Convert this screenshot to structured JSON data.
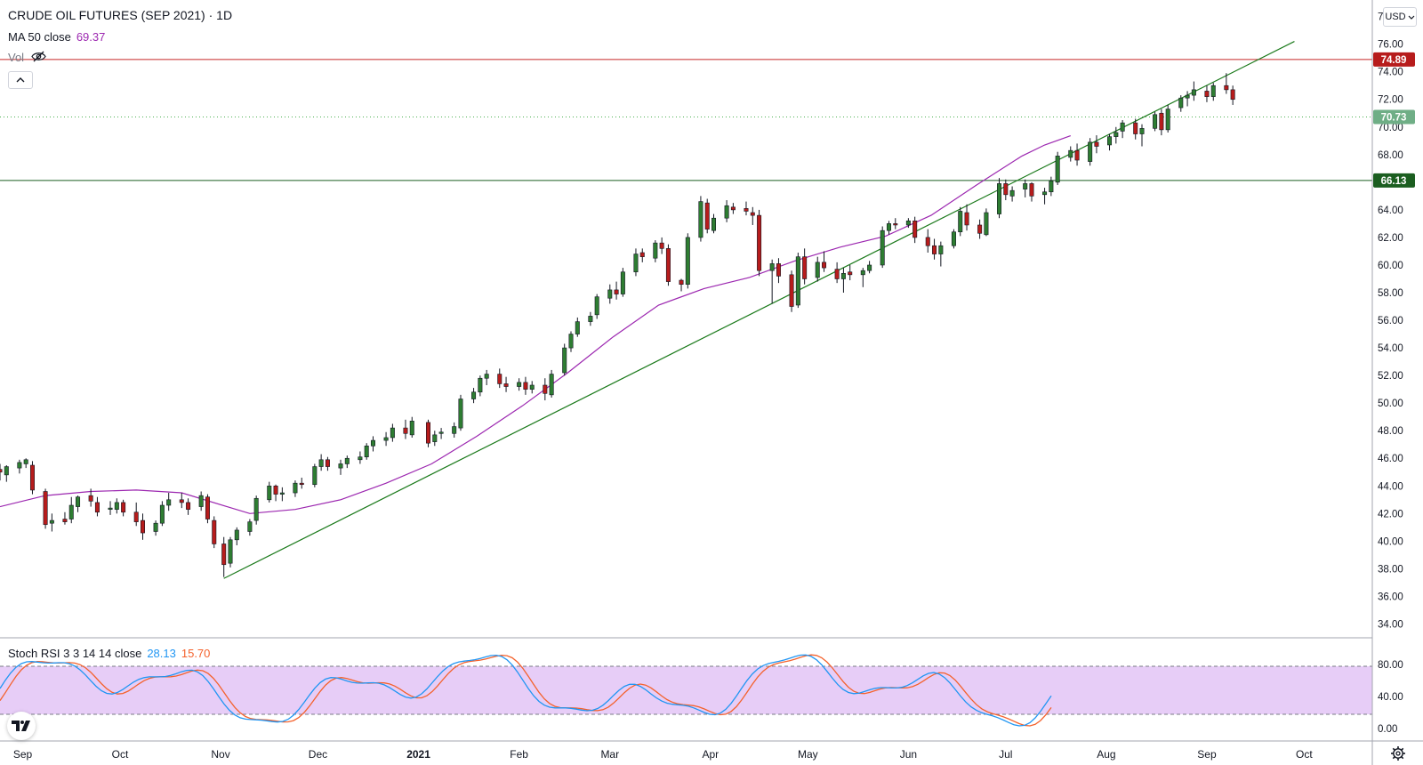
{
  "header": {
    "title": "CRUDE OIL FUTURES (SEP 2021) · 1D",
    "ma_label": "MA 50 close",
    "ma_value": "69.37",
    "vol_label": "Vol",
    "stoch_label": "Stoch RSI 3 3 14 14 close",
    "stoch_k_value": "28.13",
    "stoch_d_value": "15.70"
  },
  "currency_label": "USD",
  "colors": {
    "up": "#26a69a",
    "candle_up": "#2e7d32",
    "candle_down": "#b71c1c",
    "ma": "#9c27b0",
    "trendline": "#1b7a1b",
    "resistance": "#c62828",
    "support": "#1b5e20",
    "last_price": "#4caf50",
    "stoch_k": "#2196f3",
    "stoch_d": "#ff5722",
    "stoch_band": "#e1bee7"
  },
  "chart_data": {
    "type": "candlestick",
    "y_min": 33.0,
    "y_max": 79.2,
    "y_ticks": [
      34,
      36,
      38,
      40,
      42,
      44,
      46,
      48,
      50,
      52,
      54,
      56,
      58,
      60,
      62,
      64,
      66,
      68,
      70,
      72,
      74,
      76,
      78
    ],
    "x_ticks": [
      "Sep",
      "Oct",
      "Nov",
      "Dec",
      "2021",
      "Feb",
      "Mar",
      "Apr",
      "May",
      "Jun",
      "Jul",
      "Aug",
      "Sep",
      "Oct"
    ],
    "x_tick_dates": [
      "2020-09-01",
      "2020-10-01",
      "2020-11-01",
      "2020-12-01",
      "2021-01-01",
      "2021-02-01",
      "2021-03-01",
      "2021-04-01",
      "2021-05-01",
      "2021-06-01",
      "2021-07-01",
      "2021-08-01",
      "2021-09-01",
      "2021-10-01"
    ],
    "x_range": [
      "2020-08-25",
      "2021-10-22"
    ],
    "price_lines": [
      {
        "name": "resistance",
        "value": 74.89,
        "label": "74.89",
        "style": "solid"
      },
      {
        "name": "last-price",
        "value": 70.73,
        "label": "70.73",
        "style": "dotted"
      },
      {
        "name": "support",
        "value": 66.13,
        "label": "66.13",
        "style": "solid"
      }
    ],
    "trendline": {
      "start": [
        "2020-11-02",
        37.3
      ],
      "end": [
        "2021-09-28",
        76.2
      ]
    },
    "ma50": [
      [
        "2020-08-25",
        42.5
      ],
      [
        "2020-09-08",
        43.3
      ],
      [
        "2020-09-22",
        43.6
      ],
      [
        "2020-10-06",
        43.7
      ],
      [
        "2020-10-20",
        43.5
      ],
      [
        "2020-11-03",
        42.5
      ],
      [
        "2020-11-10",
        42.0
      ],
      [
        "2020-11-24",
        42.3
      ],
      [
        "2020-12-08",
        43.0
      ],
      [
        "2020-12-22",
        44.2
      ],
      [
        "2021-01-05",
        45.6
      ],
      [
        "2021-01-19",
        47.6
      ],
      [
        "2021-02-02",
        49.8
      ],
      [
        "2021-02-16",
        52.2
      ],
      [
        "2021-03-02",
        54.8
      ],
      [
        "2021-03-16",
        57.1
      ],
      [
        "2021-03-30",
        58.3
      ],
      [
        "2021-04-13",
        59.1
      ],
      [
        "2021-04-27",
        60.3
      ],
      [
        "2021-05-11",
        61.3
      ],
      [
        "2021-05-25",
        62.1
      ],
      [
        "2021-06-08",
        63.6
      ],
      [
        "2021-06-22",
        65.8
      ],
      [
        "2021-07-06",
        67.9
      ],
      [
        "2021-07-13",
        68.7
      ],
      [
        "2021-07-21",
        69.37
      ]
    ],
    "candles": [
      [
        "2020-08-25",
        45.2,
        45.6,
        44.4,
        45.0
      ],
      [
        "2020-08-27",
        44.8,
        45.5,
        44.3,
        45.4
      ],
      [
        "2020-08-31",
        45.3,
        45.9,
        44.9,
        45.7
      ],
      [
        "2020-09-02",
        45.6,
        46.0,
        45.3,
        45.9
      ],
      [
        "2020-09-04",
        45.5,
        45.8,
        43.4,
        43.7
      ],
      [
        "2020-09-08",
        43.6,
        43.8,
        40.9,
        41.2
      ],
      [
        "2020-09-10",
        41.3,
        42.0,
        40.7,
        41.5
      ],
      [
        "2020-09-14",
        41.6,
        42.1,
        41.2,
        41.4
      ],
      [
        "2020-09-16",
        41.6,
        43.2,
        41.3,
        42.6
      ],
      [
        "2020-09-18",
        42.5,
        43.3,
        42.1,
        43.2
      ],
      [
        "2020-09-22",
        43.3,
        43.8,
        42.5,
        42.9
      ],
      [
        "2020-09-24",
        42.8,
        43.2,
        41.8,
        42.1
      ],
      [
        "2020-09-28",
        42.3,
        42.9,
        41.9,
        42.4
      ],
      [
        "2020-09-30",
        42.3,
        43.1,
        42.0,
        42.8
      ],
      [
        "2020-10-02",
        42.8,
        43.0,
        41.8,
        42.1
      ],
      [
        "2020-10-06",
        42.1,
        42.8,
        41.1,
        41.4
      ],
      [
        "2020-10-08",
        41.5,
        42.0,
        40.1,
        40.6
      ],
      [
        "2020-10-12",
        40.7,
        41.5,
        40.4,
        41.3
      ],
      [
        "2020-10-14",
        41.3,
        42.9,
        41.1,
        42.6
      ],
      [
        "2020-10-16",
        42.6,
        43.5,
        42.2,
        43.0
      ],
      [
        "2020-10-20",
        43.0,
        43.5,
        42.4,
        42.8
      ],
      [
        "2020-10-22",
        42.8,
        43.1,
        41.9,
        42.3
      ],
      [
        "2020-10-26",
        42.5,
        43.6,
        42.2,
        43.3
      ],
      [
        "2020-10-28",
        43.2,
        43.4,
        41.3,
        41.6
      ],
      [
        "2020-10-30",
        41.5,
        41.8,
        39.5,
        39.8
      ],
      [
        "2020-11-02",
        39.8,
        40.3,
        37.4,
        38.3
      ],
      [
        "2020-11-04",
        38.4,
        40.3,
        38.1,
        40.1
      ],
      [
        "2020-11-06",
        40.1,
        41.0,
        39.7,
        40.8
      ],
      [
        "2020-11-10",
        40.7,
        41.6,
        40.4,
        41.4
      ],
      [
        "2020-11-12",
        41.5,
        43.3,
        41.2,
        43.1
      ],
      [
        "2020-11-16",
        43.0,
        44.3,
        42.8,
        44.0
      ],
      [
        "2020-11-18",
        44.0,
        44.1,
        42.9,
        43.4
      ],
      [
        "2020-11-20",
        43.4,
        43.9,
        42.9,
        43.5
      ],
      [
        "2020-11-24",
        43.5,
        44.4,
        43.2,
        44.2
      ],
      [
        "2020-11-26",
        44.2,
        44.6,
        43.8,
        44.1
      ],
      [
        "2020-11-30",
        44.1,
        45.6,
        43.9,
        45.4
      ],
      [
        "2020-12-02",
        45.4,
        46.3,
        45.1,
        45.9
      ],
      [
        "2020-12-04",
        45.9,
        46.1,
        45.1,
        45.4
      ],
      [
        "2020-12-08",
        45.3,
        45.9,
        44.8,
        45.6
      ],
      [
        "2020-12-10",
        45.6,
        46.2,
        45.3,
        46.0
      ],
      [
        "2020-12-14",
        45.9,
        46.5,
        45.6,
        46.1
      ],
      [
        "2020-12-16",
        46.1,
        47.1,
        45.9,
        46.9
      ],
      [
        "2020-12-18",
        46.9,
        47.6,
        46.5,
        47.3
      ],
      [
        "2020-12-22",
        47.3,
        47.9,
        46.9,
        47.5
      ],
      [
        "2020-12-24",
        47.5,
        48.5,
        47.2,
        48.2
      ],
      [
        "2020-12-28",
        48.2,
        48.8,
        47.4,
        47.8
      ],
      [
        "2020-12-30",
        47.7,
        49.0,
        47.5,
        48.7
      ],
      [
        "2021-01-04",
        48.6,
        48.8,
        46.8,
        47.1
      ],
      [
        "2021-01-06",
        47.2,
        48.0,
        46.9,
        47.7
      ],
      [
        "2021-01-08",
        47.8,
        48.2,
        47.4,
        47.9
      ],
      [
        "2021-01-12",
        47.8,
        48.6,
        47.5,
        48.3
      ],
      [
        "2021-01-14",
        48.2,
        50.6,
        48.0,
        50.3
      ],
      [
        "2021-01-18",
        50.3,
        51.1,
        50.0,
        50.8
      ],
      [
        "2021-01-20",
        50.8,
        52.0,
        50.5,
        51.8
      ],
      [
        "2021-01-22",
        51.8,
        52.4,
        51.3,
        52.1
      ],
      [
        "2021-01-26",
        52.1,
        52.5,
        51.1,
        51.4
      ],
      [
        "2021-01-28",
        51.4,
        51.9,
        50.8,
        51.2
      ],
      [
        "2021-02-01",
        51.2,
        51.8,
        50.9,
        51.5
      ],
      [
        "2021-02-03",
        51.5,
        51.9,
        50.6,
        51.0
      ],
      [
        "2021-02-05",
        51.0,
        51.6,
        50.7,
        51.3
      ],
      [
        "2021-02-09",
        51.3,
        51.8,
        50.2,
        50.7
      ],
      [
        "2021-02-11",
        50.6,
        52.4,
        50.4,
        52.1
      ],
      [
        "2021-02-15",
        52.2,
        54.3,
        52.0,
        54.0
      ],
      [
        "2021-02-17",
        54.0,
        55.2,
        53.7,
        55.0
      ],
      [
        "2021-02-19",
        55.0,
        56.2,
        54.8,
        55.9
      ],
      [
        "2021-02-23",
        55.9,
        56.6,
        55.6,
        56.3
      ],
      [
        "2021-02-25",
        56.4,
        57.9,
        56.1,
        57.7
      ],
      [
        "2021-03-01",
        57.6,
        58.6,
        57.2,
        58.2
      ],
      [
        "2021-03-03",
        58.2,
        58.8,
        57.5,
        57.9
      ],
      [
        "2021-03-05",
        57.9,
        59.8,
        57.7,
        59.5
      ],
      [
        "2021-03-09",
        59.5,
        61.2,
        59.2,
        60.8
      ],
      [
        "2021-03-11",
        60.9,
        61.2,
        60.2,
        60.6
      ],
      [
        "2021-03-15",
        60.5,
        61.8,
        60.2,
        61.6
      ],
      [
        "2021-03-17",
        61.6,
        62.0,
        60.8,
        61.2
      ],
      [
        "2021-03-19",
        61.2,
        61.5,
        58.5,
        58.8
      ],
      [
        "2021-03-23",
        58.9,
        59.0,
        58.1,
        58.6
      ],
      [
        "2021-03-25",
        58.6,
        62.3,
        58.3,
        62.0
      ],
      [
        "2021-03-29",
        62.0,
        65.0,
        61.7,
        64.6
      ],
      [
        "2021-03-31",
        64.5,
        64.8,
        62.3,
        62.6
      ],
      [
        "2021-04-02",
        62.5,
        63.7,
        62.3,
        63.4
      ],
      [
        "2021-04-06",
        63.4,
        64.7,
        63.1,
        64.3
      ],
      [
        "2021-04-08",
        64.2,
        64.5,
        63.7,
        64.0
      ],
      [
        "2021-04-12",
        64.1,
        64.6,
        63.6,
        63.9
      ],
      [
        "2021-04-14",
        63.8,
        64.2,
        62.9,
        63.6
      ],
      [
        "2021-04-16",
        63.6,
        64.0,
        59.2,
        59.6
      ],
      [
        "2021-04-20",
        59.6,
        60.4,
        57.2,
        60.1
      ],
      [
        "2021-04-22",
        60.1,
        60.5,
        58.7,
        59.2
      ],
      [
        "2021-04-26",
        59.3,
        59.6,
        56.6,
        57.0
      ],
      [
        "2021-04-28",
        57.1,
        60.9,
        56.9,
        60.6
      ],
      [
        "2021-04-30",
        60.6,
        61.2,
        58.6,
        59.0
      ],
      [
        "2021-05-04",
        59.1,
        60.6,
        58.8,
        60.2
      ],
      [
        "2021-05-06",
        60.2,
        61.0,
        59.5,
        59.8
      ],
      [
        "2021-05-10",
        59.7,
        60.2,
        58.7,
        59.0
      ],
      [
        "2021-05-12",
        59.0,
        59.8,
        58.0,
        59.4
      ],
      [
        "2021-05-14",
        59.5,
        60.0,
        58.9,
        59.3
      ],
      [
        "2021-05-18",
        59.3,
        59.8,
        58.4,
        59.6
      ],
      [
        "2021-05-20",
        59.6,
        60.3,
        59.4,
        60.0
      ],
      [
        "2021-05-24",
        60.0,
        62.8,
        59.8,
        62.5
      ],
      [
        "2021-05-26",
        62.5,
        63.2,
        62.2,
        63.0
      ],
      [
        "2021-05-28",
        63.0,
        63.4,
        62.6,
        62.9
      ],
      [
        "2021-06-01",
        62.9,
        63.4,
        62.7,
        63.2
      ],
      [
        "2021-06-03",
        63.2,
        63.5,
        61.6,
        62.0
      ],
      [
        "2021-06-07",
        62.0,
        62.6,
        60.9,
        61.4
      ],
      [
        "2021-06-09",
        61.4,
        61.9,
        60.4,
        60.8
      ],
      [
        "2021-06-11",
        60.8,
        61.7,
        59.9,
        61.4
      ],
      [
        "2021-06-15",
        61.4,
        62.6,
        61.2,
        62.4
      ],
      [
        "2021-06-17",
        62.4,
        64.2,
        62.1,
        63.9
      ],
      [
        "2021-06-19",
        63.8,
        64.4,
        62.5,
        62.9
      ],
      [
        "2021-06-23",
        62.9,
        63.3,
        61.9,
        62.3
      ],
      [
        "2021-06-25",
        62.2,
        64.1,
        62.1,
        63.8
      ],
      [
        "2021-06-29",
        63.7,
        66.3,
        63.4,
        65.9
      ],
      [
        "2021-07-01",
        65.9,
        66.2,
        64.7,
        65.1
      ],
      [
        "2021-07-03",
        65.0,
        65.7,
        64.6,
        65.4
      ],
      [
        "2021-07-07",
        65.5,
        66.2,
        64.9,
        65.9
      ],
      [
        "2021-07-09",
        65.9,
        66.0,
        64.6,
        65.0
      ],
      [
        "2021-07-13",
        65.1,
        65.6,
        64.4,
        65.3
      ],
      [
        "2021-07-15",
        65.3,
        66.4,
        65.0,
        66.1
      ],
      [
        "2021-07-17",
        66.0,
        68.2,
        65.8,
        67.9
      ],
      [
        "2021-07-21",
        67.8,
        68.6,
        67.5,
        68.3
      ],
      [
        "2021-07-23",
        68.3,
        68.8,
        67.2,
        67.6
      ],
      [
        "2021-07-27",
        67.5,
        69.2,
        67.2,
        68.9
      ],
      [
        "2021-07-29",
        68.9,
        69.4,
        68.1,
        68.6
      ],
      [
        "2021-08-02",
        68.7,
        69.5,
        68.3,
        69.3
      ],
      [
        "2021-08-04",
        69.3,
        70.0,
        68.8,
        69.6
      ],
      [
        "2021-08-06",
        69.7,
        70.5,
        69.2,
        70.3
      ],
      [
        "2021-08-10",
        70.3,
        70.6,
        69.1,
        69.5
      ],
      [
        "2021-08-12",
        69.5,
        70.2,
        68.6,
        69.9
      ],
      [
        "2021-08-16",
        69.9,
        71.1,
        69.7,
        70.9
      ],
      [
        "2021-08-18",
        71.0,
        71.3,
        69.4,
        69.8
      ],
      [
        "2021-08-20",
        69.8,
        71.6,
        69.6,
        71.3
      ],
      [
        "2021-08-24",
        71.4,
        72.3,
        71.1,
        72.1
      ],
      [
        "2021-08-26",
        72.1,
        72.6,
        71.5,
        72.3
      ],
      [
        "2021-08-28",
        72.3,
        73.3,
        71.9,
        72.7
      ],
      [
        "2021-09-01",
        72.6,
        73.0,
        71.8,
        72.2
      ],
      [
        "2021-09-03",
        72.2,
        73.2,
        71.9,
        73.0
      ],
      [
        "2021-09-07",
        73.0,
        73.9,
        72.4,
        72.7
      ],
      [
        "2021-09-09",
        72.7,
        73.0,
        71.6,
        72.0
      ]
    ]
  }
}
